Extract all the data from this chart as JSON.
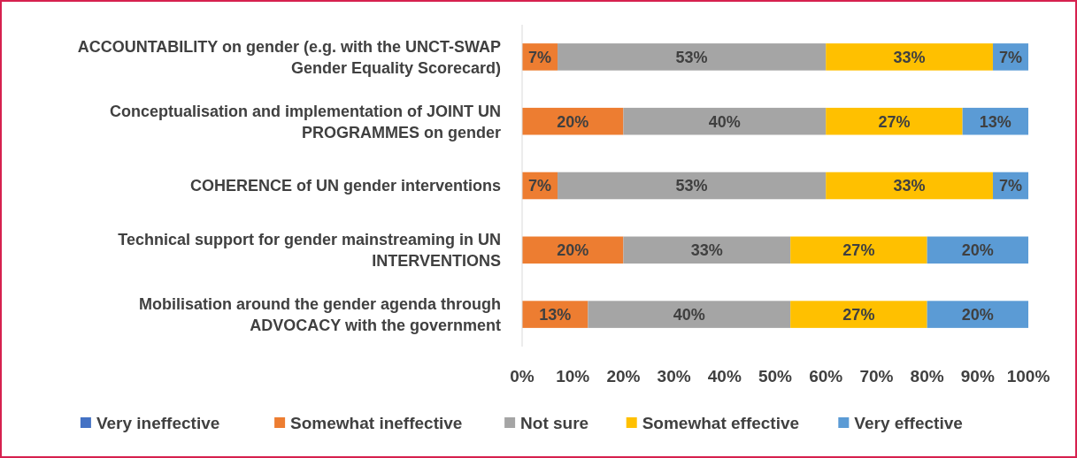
{
  "chart_data": {
    "type": "bar",
    "orientation": "horizontal",
    "stacked": true,
    "categories": [
      "ACCOUNTABILITY on gender (e.g. with the UNCT-SWAP Gender Equality Scorecard)",
      "Conceptualisation and implementation of JOINT UN PROGRAMMES on gender",
      "COHERENCE of UN gender interventions",
      "Technical support for gender mainstreaming in UN INTERVENTIONS",
      "Mobilisation around the gender agenda through ADVOCACY with the government"
    ],
    "series": [
      {
        "name": "Very ineffective",
        "color": "#4472c4",
        "values": [
          0,
          0,
          0,
          0,
          0
        ],
        "value_labels": [
          null,
          null,
          null,
          null,
          null
        ]
      },
      {
        "name": "Somewhat ineffective",
        "color": "#ed7d31",
        "values": [
          7,
          20,
          7,
          20,
          13
        ],
        "value_labels": [
          "7%",
          "20%",
          "7%",
          "20%",
          "13%"
        ]
      },
      {
        "name": "Not sure",
        "color": "#a5a5a5",
        "values": [
          53,
          40,
          53,
          33,
          40
        ],
        "value_labels": [
          "53%",
          "40%",
          "53%",
          "33%",
          "40%"
        ]
      },
      {
        "name": "Somewhat effective",
        "color": "#ffc000",
        "values": [
          33,
          27,
          33,
          27,
          27
        ],
        "value_labels": [
          "33%",
          "27%",
          "33%",
          "27%",
          "27%"
        ]
      },
      {
        "name": "Very effective",
        "color": "#5b9bd5",
        "values": [
          7,
          13,
          7,
          20,
          20
        ],
        "value_labels": [
          "7%",
          "13%",
          "7%",
          "20%",
          "20%"
        ]
      }
    ],
    "xlim": [
      0,
      100
    ],
    "xticks": [
      {
        "value": 0,
        "label": "0%"
      },
      {
        "value": 10,
        "label": "10%"
      },
      {
        "value": 20,
        "label": "20%"
      },
      {
        "value": 30,
        "label": "30%"
      },
      {
        "value": 40,
        "label": "40%"
      },
      {
        "value": 50,
        "label": "50%"
      },
      {
        "value": 60,
        "label": "60%"
      },
      {
        "value": 70,
        "label": "70%"
      },
      {
        "value": 80,
        "label": "80%"
      },
      {
        "value": 90,
        "label": "90%"
      },
      {
        "value": 100,
        "label": "100%"
      }
    ],
    "grid": false,
    "legend": "bottom"
  }
}
